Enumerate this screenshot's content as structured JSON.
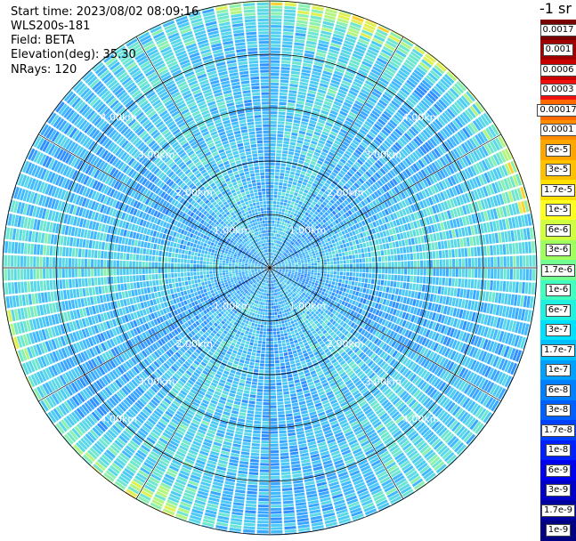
{
  "info": {
    "start_time": "Start time: 2023/08/02 08:09:16",
    "instrument": "WLS200s-181",
    "field": "Field: BETA",
    "elevation": "Elevation(deg): 35.30",
    "nrays": "NRays: 120"
  },
  "chart_data": {
    "type": "ppi-polar-heatmap",
    "field": "BETA",
    "nrays": 120,
    "range_rings_km": [
      1,
      2,
      3,
      4
    ],
    "ring_labels": [
      "1.00km",
      "2.00km",
      "3.00km",
      "4.00km"
    ],
    "max_range_km": 5,
    "colorbar": {
      "unit": "-1 sr",
      "labels": [
        "0.0017",
        "0.001",
        "0.0006",
        "0.0003",
        "0.00017",
        "0.0001",
        "6e-5",
        "3e-5",
        "1.7e-5",
        "1e-5",
        "6e-6",
        "3e-6",
        "1.7e-6",
        "1e-6",
        "6e-7",
        "3e-7",
        "1.7e-7",
        "1e-7",
        "6e-8",
        "3e-8",
        "1.7e-8",
        "1e-8",
        "6e-9",
        "3e-9",
        "1.7e-9",
        "1e-9"
      ],
      "colors": [
        "#7a0000",
        "#a00000",
        "#c80000",
        "#f01010",
        "#ff6a00",
        "#ff8c00",
        "#ffa500",
        "#ffc000",
        "#ffe000",
        "#ffff20",
        "#d0ff40",
        "#a0ff60",
        "#70ff90",
        "#40ffc0",
        "#20f0e0",
        "#00e0ff",
        "#00c0ff",
        "#00a0ff",
        "#0080ff",
        "#0060ff",
        "#0040ff",
        "#0020ff",
        "#0000f0",
        "#0000c8",
        "#0000a0",
        "#000080"
      ]
    }
  }
}
